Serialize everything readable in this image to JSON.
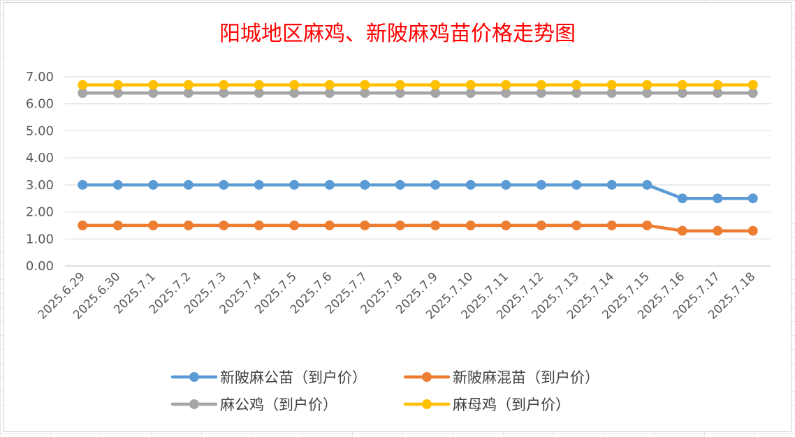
{
  "chart_data": {
    "type": "line",
    "title": "阳城地区麻鸡、新陂麻鸡苗价格走势图",
    "xlabel": "",
    "ylabel": "",
    "ylim": [
      0,
      7
    ],
    "y_ticks": [
      "0.00",
      "1.00",
      "2.00",
      "3.00",
      "4.00",
      "5.00",
      "6.00",
      "7.00"
    ],
    "grid": true,
    "legend_position": "bottom",
    "categories": [
      "2025.6.29",
      "2025.6.30",
      "2025.7.1",
      "2025.7.2",
      "2025.7.3",
      "2025.7.4",
      "2025.7.5",
      "2025.7.6",
      "2025.7.7",
      "2025.7.8",
      "2025.7.9",
      "2025.7.10",
      "2025.7.11",
      "2025.7.12",
      "2025.7.13",
      "2025.7.14",
      "2025.7.15",
      "2025.7.16",
      "2025.7.17",
      "2025.7.18"
    ],
    "series": [
      {
        "name": "新陂麻公苗（到户价）",
        "color": "#5b9bd5",
        "values": [
          3,
          3,
          3,
          3,
          3,
          3,
          3,
          3,
          3,
          3,
          3,
          3,
          3,
          3,
          3,
          3,
          3,
          2.5,
          2.5,
          2.5
        ]
      },
      {
        "name": "新陂麻混苗（到户价）",
        "color": "#ed7d31",
        "values": [
          1.5,
          1.5,
          1.5,
          1.5,
          1.5,
          1.5,
          1.5,
          1.5,
          1.5,
          1.5,
          1.5,
          1.5,
          1.5,
          1.5,
          1.5,
          1.5,
          1.5,
          1.3,
          1.3,
          1.3
        ]
      },
      {
        "name": "麻公鸡（到户价）",
        "color": "#a5a5a5",
        "values": [
          6.4,
          6.4,
          6.4,
          6.4,
          6.4,
          6.4,
          6.4,
          6.4,
          6.4,
          6.4,
          6.4,
          6.4,
          6.4,
          6.4,
          6.4,
          6.4,
          6.4,
          6.4,
          6.4,
          6.4
        ]
      },
      {
        "name": "麻母鸡（到户价）",
        "color": "#ffc000",
        "values": [
          6.7,
          6.7,
          6.7,
          6.7,
          6.7,
          6.7,
          6.7,
          6.7,
          6.7,
          6.7,
          6.7,
          6.7,
          6.7,
          6.7,
          6.7,
          6.7,
          6.7,
          6.7,
          6.7,
          6.7
        ]
      }
    ]
  }
}
